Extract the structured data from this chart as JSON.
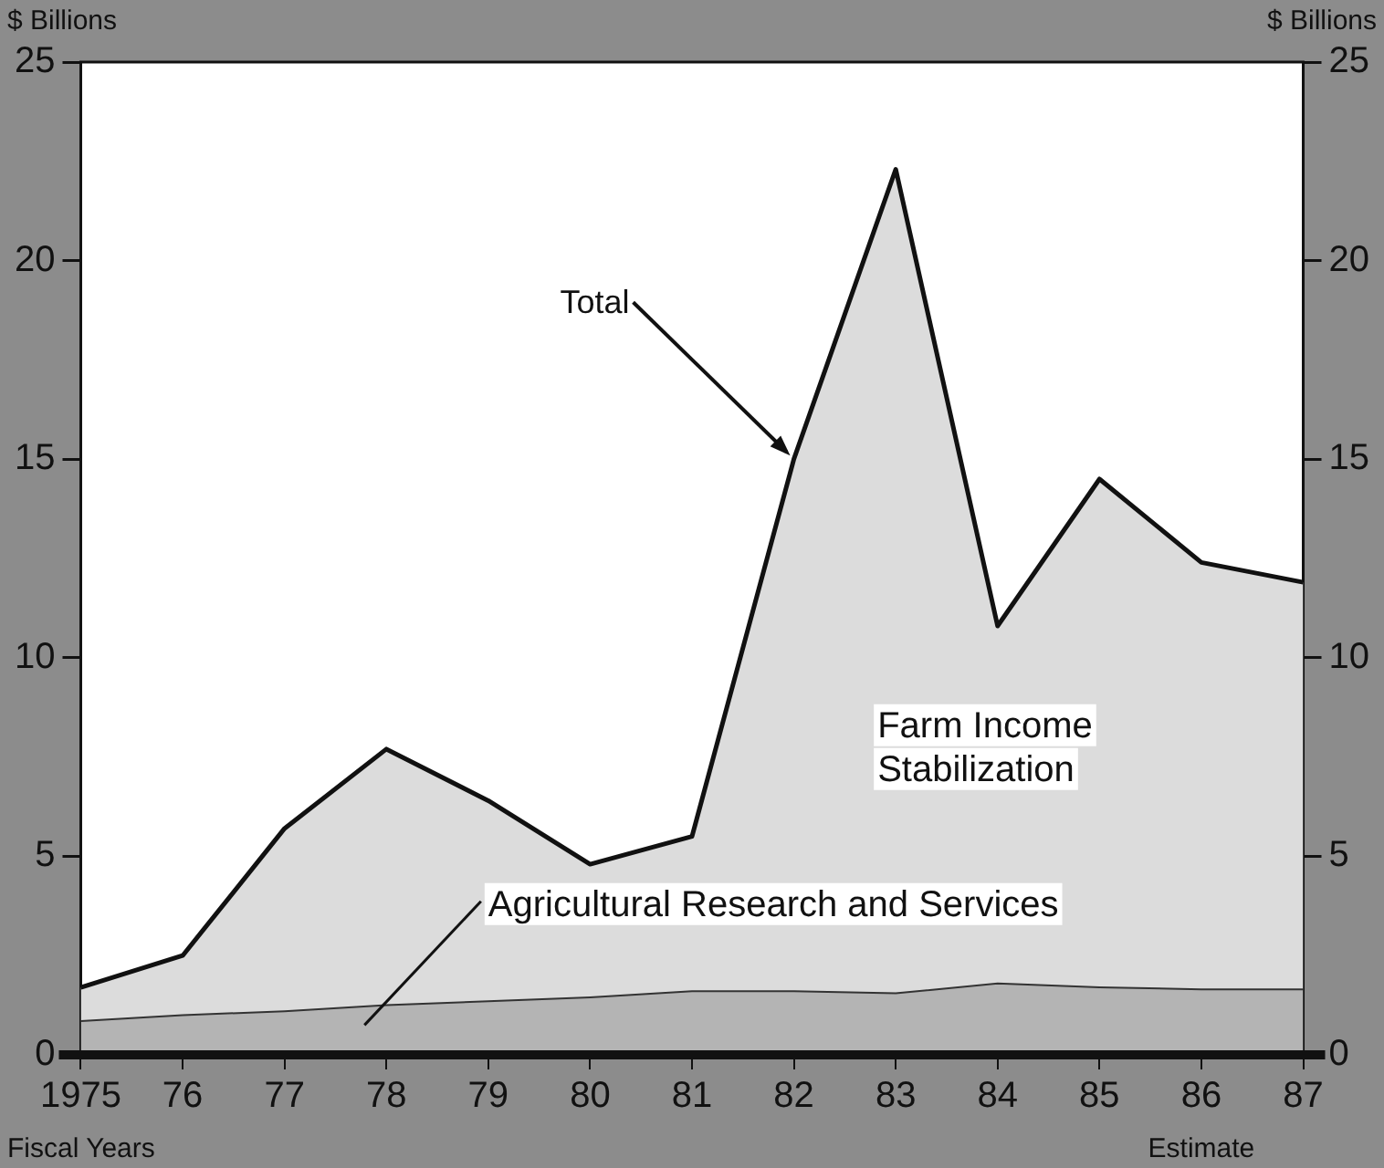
{
  "chart_data": {
    "type": "area",
    "stacked": true,
    "xlabel": "Fiscal Years",
    "ylabel": "$ Billions",
    "y2label": "$ Billions",
    "categories": [
      "1975",
      "76",
      "77",
      "78",
      "79",
      "80",
      "81",
      "82",
      "83",
      "84",
      "85",
      "86",
      "87"
    ],
    "series": [
      {
        "name": "Agricultural Research and Services",
        "color": "#b4b4b4",
        "values": [
          0.85,
          1.0,
          1.1,
          1.25,
          1.35,
          1.45,
          1.6,
          1.6,
          1.55,
          1.8,
          1.7,
          1.65,
          1.65
        ]
      },
      {
        "name": "Farm Income Stabilization",
        "color": "#dcdcdc",
        "values": [
          0.85,
          1.5,
          4.6,
          6.45,
          5.05,
          3.35,
          3.9,
          13.4,
          20.75,
          9.0,
          12.8,
          10.75,
          10.25
        ]
      }
    ],
    "ylim": [
      0,
      25
    ],
    "yticks": [
      0,
      5,
      10,
      15,
      20,
      25
    ],
    "y2lim": [
      0,
      25
    ],
    "y2ticks": [
      0,
      5,
      10,
      15,
      20,
      25
    ],
    "grid": false,
    "legend": false,
    "annotations": [
      {
        "text": "Total",
        "x": "82",
        "y": 15
      },
      "Estimate"
    ]
  }
}
